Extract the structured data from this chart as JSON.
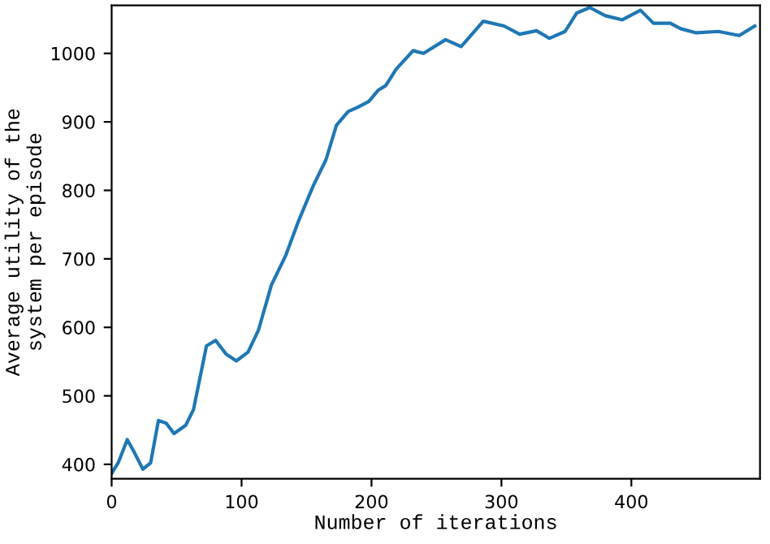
{
  "chart_data": {
    "type": "line",
    "xlabel": "Number of iterations",
    "ylabel": "Average utility of the\nsystem per episode",
    "xlim": [
      0,
      499
    ],
    "ylim": [
      379,
      1070
    ],
    "xticks": [
      0,
      100,
      200,
      300,
      400
    ],
    "yticks": [
      400,
      500,
      600,
      700,
      800,
      900,
      1000
    ],
    "grid": false,
    "legend": false,
    "marker": "none",
    "line_style": "solid",
    "series": [
      {
        "color": "#1f77b4",
        "x": [
          0,
          5,
          12,
          17,
          24,
          30,
          36,
          42,
          48,
          57,
          63,
          73,
          80,
          88,
          96,
          105,
          113,
          123,
          134,
          144,
          155,
          165,
          173,
          182,
          190,
          198,
          205,
          211,
          219,
          232,
          240,
          257,
          269,
          286,
          302,
          314,
          327,
          337,
          349,
          358,
          368,
          380,
          393,
          407,
          417,
          430,
          438,
          450,
          467,
          483,
          495
        ],
        "values": [
          387,
          402,
          436,
          419,
          393,
          402,
          464,
          460,
          445,
          457,
          480,
          573,
          581,
          561,
          551,
          564,
          596,
          662,
          705,
          756,
          806,
          845,
          895,
          915,
          922,
          930,
          946,
          953,
          977,
          1004,
          1000,
          1020,
          1010,
          1047,
          1040,
          1028,
          1033,
          1022,
          1032,
          1059,
          1067,
          1055,
          1049,
          1063,
          1044,
          1044,
          1036,
          1030,
          1032,
          1026,
          1040
        ]
      }
    ]
  }
}
